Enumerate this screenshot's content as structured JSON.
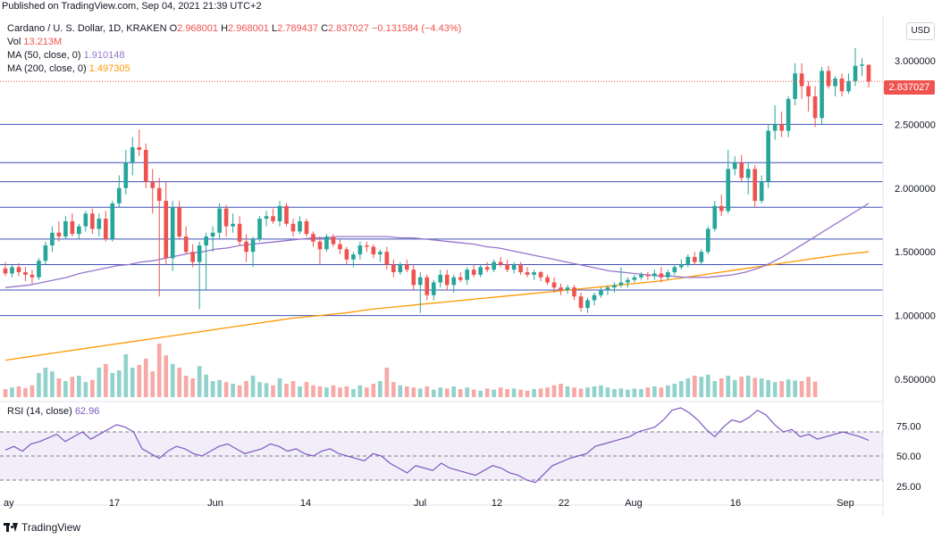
{
  "header": {
    "published": "Published on TradingView.com, Sep 04, 2021 21:39 UTC+2"
  },
  "legend": {
    "symbol": "Cardano / U. S. Dollar, 1D, KRAKEN",
    "o_label": "O",
    "o_value": "2.968001",
    "h_label": "H",
    "h_value": "2.968001",
    "l_label": "L",
    "l_value": "2.789437",
    "c_label": "C",
    "c_value": "2.837027",
    "change": "−0.131584 (−4.43%)",
    "vol_label": "Vol",
    "vol_value": "13.213M",
    "ma50_label": "MA (50, close, 0)",
    "ma50_value": "1.910148",
    "ma200_label": "MA (200, close, 0)",
    "ma200_value": "1.497305"
  },
  "rsi": {
    "label": "RSI (14, close)",
    "value": "62.96"
  },
  "currency_button": "USD",
  "last_price_tag": "2.837027",
  "colors": {
    "up": "#26a69a",
    "down": "#ef5350",
    "ma50": "#9575cd",
    "ma200": "#ff9800",
    "hline": "#3f51b5",
    "rsi_band": "#7e57c2"
  },
  "price_axis": [
    "3.000000",
    "2.500000",
    "2.000000",
    "1.500000",
    "1.000000",
    "0.500000"
  ],
  "rsi_axis": [
    "75.00",
    "50.00",
    "25.00"
  ],
  "time_axis": [
    "ay",
    "17",
    "Jun",
    "14",
    "Jul",
    "12",
    "22",
    "Aug",
    "16",
    "Sep"
  ],
  "footer": {
    "brand": "TradingView"
  },
  "chart_data": {
    "type": "candlestick",
    "horizontal_levels": [
      2.5,
      2.2,
      2.05,
      1.85,
      1.6,
      1.4,
      1.2,
      1.0
    ],
    "ylim": [
      0.45,
      3.15
    ],
    "candles": [
      {
        "o": 1.37,
        "h": 1.42,
        "l": 1.31,
        "c": 1.33
      },
      {
        "o": 1.33,
        "h": 1.4,
        "l": 1.3,
        "c": 1.38
      },
      {
        "o": 1.38,
        "h": 1.41,
        "l": 1.31,
        "c": 1.34
      },
      {
        "o": 1.34,
        "h": 1.38,
        "l": 1.27,
        "c": 1.32
      },
      {
        "o": 1.32,
        "h": 1.36,
        "l": 1.25,
        "c": 1.3
      },
      {
        "o": 1.3,
        "h": 1.45,
        "l": 1.28,
        "c": 1.43
      },
      {
        "o": 1.43,
        "h": 1.58,
        "l": 1.4,
        "c": 1.55
      },
      {
        "o": 1.55,
        "h": 1.7,
        "l": 1.5,
        "c": 1.65
      },
      {
        "o": 1.65,
        "h": 1.74,
        "l": 1.58,
        "c": 1.62
      },
      {
        "o": 1.62,
        "h": 1.78,
        "l": 1.6,
        "c": 1.74
      },
      {
        "o": 1.74,
        "h": 1.8,
        "l": 1.62,
        "c": 1.64
      },
      {
        "o": 1.64,
        "h": 1.72,
        "l": 1.6,
        "c": 1.7
      },
      {
        "o": 1.7,
        "h": 1.82,
        "l": 1.66,
        "c": 1.8
      },
      {
        "o": 1.8,
        "h": 1.84,
        "l": 1.64,
        "c": 1.68
      },
      {
        "o": 1.68,
        "h": 1.8,
        "l": 1.62,
        "c": 1.76
      },
      {
        "o": 1.76,
        "h": 1.82,
        "l": 1.58,
        "c": 1.6
      },
      {
        "o": 1.6,
        "h": 1.9,
        "l": 1.58,
        "c": 1.88
      },
      {
        "o": 1.88,
        "h": 2.1,
        "l": 1.85,
        "c": 2.0
      },
      {
        "o": 2.0,
        "h": 2.3,
        "l": 1.95,
        "c": 2.2
      },
      {
        "o": 2.2,
        "h": 2.4,
        "l": 2.1,
        "c": 2.32
      },
      {
        "o": 2.32,
        "h": 2.46,
        "l": 2.25,
        "c": 2.3
      },
      {
        "o": 2.3,
        "h": 2.35,
        "l": 2.0,
        "c": 2.05
      },
      {
        "o": 2.05,
        "h": 2.15,
        "l": 1.8,
        "c": 2.0
      },
      {
        "o": 2.0,
        "h": 2.08,
        "l": 1.15,
        "c": 1.9
      },
      {
        "o": 1.9,
        "h": 2.05,
        "l": 1.4,
        "c": 1.45
      },
      {
        "o": 1.45,
        "h": 1.9,
        "l": 1.35,
        "c": 1.85
      },
      {
        "o": 1.85,
        "h": 1.9,
        "l": 1.6,
        "c": 1.62
      },
      {
        "o": 1.62,
        "h": 1.7,
        "l": 1.48,
        "c": 1.5
      },
      {
        "o": 1.5,
        "h": 1.56,
        "l": 1.38,
        "c": 1.42
      },
      {
        "o": 1.42,
        "h": 1.58,
        "l": 1.05,
        "c": 1.55
      },
      {
        "o": 1.55,
        "h": 1.65,
        "l": 1.2,
        "c": 1.62
      },
      {
        "o": 1.62,
        "h": 1.7,
        "l": 1.5,
        "c": 1.65
      },
      {
        "o": 1.65,
        "h": 1.88,
        "l": 1.6,
        "c": 1.84
      },
      {
        "o": 1.84,
        "h": 1.87,
        "l": 1.62,
        "c": 1.7
      },
      {
        "o": 1.7,
        "h": 1.8,
        "l": 1.65,
        "c": 1.72
      },
      {
        "o": 1.72,
        "h": 1.78,
        "l": 1.55,
        "c": 1.58
      },
      {
        "o": 1.58,
        "h": 1.64,
        "l": 1.42,
        "c": 1.5
      },
      {
        "o": 1.5,
        "h": 1.62,
        "l": 1.38,
        "c": 1.6
      },
      {
        "o": 1.6,
        "h": 1.78,
        "l": 1.58,
        "c": 1.76
      },
      {
        "o": 1.76,
        "h": 1.82,
        "l": 1.7,
        "c": 1.78
      },
      {
        "o": 1.78,
        "h": 1.84,
        "l": 1.72,
        "c": 1.74
      },
      {
        "o": 1.74,
        "h": 1.9,
        "l": 1.7,
        "c": 1.86
      },
      {
        "o": 1.86,
        "h": 1.88,
        "l": 1.7,
        "c": 1.72
      },
      {
        "o": 1.72,
        "h": 1.76,
        "l": 1.62,
        "c": 1.66
      },
      {
        "o": 1.66,
        "h": 1.78,
        "l": 1.64,
        "c": 1.74
      },
      {
        "o": 1.74,
        "h": 1.76,
        "l": 1.62,
        "c": 1.64
      },
      {
        "o": 1.64,
        "h": 1.66,
        "l": 1.54,
        "c": 1.58
      },
      {
        "o": 1.58,
        "h": 1.62,
        "l": 1.4,
        "c": 1.52
      },
      {
        "o": 1.52,
        "h": 1.64,
        "l": 1.5,
        "c": 1.62
      },
      {
        "o": 1.62,
        "h": 1.64,
        "l": 1.54,
        "c": 1.56
      },
      {
        "o": 1.56,
        "h": 1.6,
        "l": 1.48,
        "c": 1.52
      },
      {
        "o": 1.52,
        "h": 1.54,
        "l": 1.4,
        "c": 1.44
      },
      {
        "o": 1.44,
        "h": 1.5,
        "l": 1.38,
        "c": 1.48
      },
      {
        "o": 1.48,
        "h": 1.58,
        "l": 1.44,
        "c": 1.55
      },
      {
        "o": 1.55,
        "h": 1.58,
        "l": 1.5,
        "c": 1.54
      },
      {
        "o": 1.54,
        "h": 1.56,
        "l": 1.45,
        "c": 1.48
      },
      {
        "o": 1.48,
        "h": 1.52,
        "l": 1.42,
        "c": 1.5
      },
      {
        "o": 1.5,
        "h": 1.54,
        "l": 1.36,
        "c": 1.4
      },
      {
        "o": 1.4,
        "h": 1.44,
        "l": 1.3,
        "c": 1.34
      },
      {
        "o": 1.34,
        "h": 1.42,
        "l": 1.32,
        "c": 1.4
      },
      {
        "o": 1.4,
        "h": 1.44,
        "l": 1.34,
        "c": 1.36
      },
      {
        "o": 1.36,
        "h": 1.4,
        "l": 1.2,
        "c": 1.24
      },
      {
        "o": 1.24,
        "h": 1.34,
        "l": 1.02,
        "c": 1.3
      },
      {
        "o": 1.3,
        "h": 1.32,
        "l": 1.12,
        "c": 1.16
      },
      {
        "o": 1.16,
        "h": 1.28,
        "l": 1.12,
        "c": 1.26
      },
      {
        "o": 1.26,
        "h": 1.36,
        "l": 1.22,
        "c": 1.32
      },
      {
        "o": 1.32,
        "h": 1.36,
        "l": 1.2,
        "c": 1.24
      },
      {
        "o": 1.24,
        "h": 1.32,
        "l": 1.18,
        "c": 1.3
      },
      {
        "o": 1.3,
        "h": 1.34,
        "l": 1.26,
        "c": 1.28
      },
      {
        "o": 1.28,
        "h": 1.38,
        "l": 1.24,
        "c": 1.36
      },
      {
        "o": 1.36,
        "h": 1.4,
        "l": 1.3,
        "c": 1.32
      },
      {
        "o": 1.32,
        "h": 1.4,
        "l": 1.3,
        "c": 1.38
      },
      {
        "o": 1.38,
        "h": 1.42,
        "l": 1.34,
        "c": 1.36
      },
      {
        "o": 1.36,
        "h": 1.44,
        "l": 1.34,
        "c": 1.42
      },
      {
        "o": 1.42,
        "h": 1.46,
        "l": 1.38,
        "c": 1.4
      },
      {
        "o": 1.4,
        "h": 1.44,
        "l": 1.34,
        "c": 1.36
      },
      {
        "o": 1.36,
        "h": 1.42,
        "l": 1.33,
        "c": 1.4
      },
      {
        "o": 1.4,
        "h": 1.42,
        "l": 1.32,
        "c": 1.34
      },
      {
        "o": 1.34,
        "h": 1.38,
        "l": 1.3,
        "c": 1.32
      },
      {
        "o": 1.32,
        "h": 1.36,
        "l": 1.28,
        "c": 1.34
      },
      {
        "o": 1.34,
        "h": 1.35,
        "l": 1.27,
        "c": 1.3
      },
      {
        "o": 1.3,
        "h": 1.32,
        "l": 1.24,
        "c": 1.26
      },
      {
        "o": 1.26,
        "h": 1.3,
        "l": 1.18,
        "c": 1.22
      },
      {
        "o": 1.22,
        "h": 1.25,
        "l": 1.16,
        "c": 1.2
      },
      {
        "o": 1.2,
        "h": 1.24,
        "l": 1.17,
        "c": 1.22
      },
      {
        "o": 1.22,
        "h": 1.24,
        "l": 1.12,
        "c": 1.15
      },
      {
        "o": 1.15,
        "h": 1.18,
        "l": 1.03,
        "c": 1.06
      },
      {
        "o": 1.06,
        "h": 1.14,
        "l": 1.02,
        "c": 1.12
      },
      {
        "o": 1.12,
        "h": 1.18,
        "l": 1.08,
        "c": 1.16
      },
      {
        "o": 1.16,
        "h": 1.22,
        "l": 1.14,
        "c": 1.2
      },
      {
        "o": 1.2,
        "h": 1.24,
        "l": 1.16,
        "c": 1.22
      },
      {
        "o": 1.22,
        "h": 1.26,
        "l": 1.18,
        "c": 1.24
      },
      {
        "o": 1.24,
        "h": 1.38,
        "l": 1.22,
        "c": 1.26
      },
      {
        "o": 1.26,
        "h": 1.3,
        "l": 1.22,
        "c": 1.28
      },
      {
        "o": 1.28,
        "h": 1.32,
        "l": 1.26,
        "c": 1.3
      },
      {
        "o": 1.3,
        "h": 1.34,
        "l": 1.28,
        "c": 1.32
      },
      {
        "o": 1.32,
        "h": 1.34,
        "l": 1.28,
        "c": 1.31
      },
      {
        "o": 1.31,
        "h": 1.36,
        "l": 1.28,
        "c": 1.33
      },
      {
        "o": 1.33,
        "h": 1.38,
        "l": 1.26,
        "c": 1.3
      },
      {
        "o": 1.3,
        "h": 1.36,
        "l": 1.28,
        "c": 1.34
      },
      {
        "o": 1.34,
        "h": 1.4,
        "l": 1.32,
        "c": 1.38
      },
      {
        "o": 1.38,
        "h": 1.44,
        "l": 1.36,
        "c": 1.4
      },
      {
        "o": 1.4,
        "h": 1.48,
        "l": 1.38,
        "c": 1.46
      },
      {
        "o": 1.46,
        "h": 1.5,
        "l": 1.4,
        "c": 1.42
      },
      {
        "o": 1.42,
        "h": 1.52,
        "l": 1.4,
        "c": 1.5
      },
      {
        "o": 1.5,
        "h": 1.7,
        "l": 1.48,
        "c": 1.68
      },
      {
        "o": 1.68,
        "h": 1.9,
        "l": 1.66,
        "c": 1.86
      },
      {
        "o": 1.86,
        "h": 1.95,
        "l": 1.78,
        "c": 1.82
      },
      {
        "o": 1.82,
        "h": 2.3,
        "l": 1.8,
        "c": 2.15
      },
      {
        "o": 2.15,
        "h": 2.25,
        "l": 2.1,
        "c": 2.2
      },
      {
        "o": 2.2,
        "h": 2.26,
        "l": 2.05,
        "c": 2.08
      },
      {
        "o": 2.08,
        "h": 2.2,
        "l": 1.95,
        "c": 2.15
      },
      {
        "o": 2.15,
        "h": 2.18,
        "l": 1.85,
        "c": 1.9
      },
      {
        "o": 1.9,
        "h": 2.1,
        "l": 1.88,
        "c": 2.05
      },
      {
        "o": 2.05,
        "h": 2.5,
        "l": 2.0,
        "c": 2.45
      },
      {
        "o": 2.45,
        "h": 2.65,
        "l": 2.38,
        "c": 2.5
      },
      {
        "o": 2.5,
        "h": 2.6,
        "l": 2.4,
        "c": 2.45
      },
      {
        "o": 2.45,
        "h": 2.72,
        "l": 2.4,
        "c": 2.7
      },
      {
        "o": 2.7,
        "h": 2.98,
        "l": 2.65,
        "c": 2.9
      },
      {
        "o": 2.9,
        "h": 2.98,
        "l": 2.7,
        "c": 2.8
      },
      {
        "o": 2.8,
        "h": 2.84,
        "l": 2.6,
        "c": 2.72
      },
      {
        "o": 2.72,
        "h": 2.8,
        "l": 2.48,
        "c": 2.55
      },
      {
        "o": 2.55,
        "h": 2.95,
        "l": 2.5,
        "c": 2.92
      },
      {
        "o": 2.92,
        "h": 2.96,
        "l": 2.78,
        "c": 2.8
      },
      {
        "o": 2.8,
        "h": 2.88,
        "l": 2.72,
        "c": 2.86
      },
      {
        "o": 2.86,
        "h": 2.9,
        "l": 2.72,
        "c": 2.76
      },
      {
        "o": 2.76,
        "h": 2.9,
        "l": 2.74,
        "c": 2.84
      },
      {
        "o": 2.84,
        "h": 3.1,
        "l": 2.8,
        "c": 2.96
      },
      {
        "o": 2.96,
        "h": 3.02,
        "l": 2.88,
        "c": 2.97
      },
      {
        "o": 2.968,
        "h": 2.968,
        "l": 2.789,
        "c": 2.837
      }
    ],
    "volume": [
      0.15,
      0.18,
      0.2,
      0.17,
      0.22,
      0.45,
      0.55,
      0.48,
      0.35,
      0.3,
      0.38,
      0.4,
      0.28,
      0.32,
      0.55,
      0.62,
      0.45,
      0.5,
      0.8,
      0.55,
      0.6,
      0.72,
      0.48,
      1.0,
      0.78,
      0.62,
      0.55,
      0.4,
      0.35,
      0.58,
      0.42,
      0.3,
      0.32,
      0.28,
      0.25,
      0.22,
      0.3,
      0.4,
      0.28,
      0.26,
      0.22,
      0.35,
      0.25,
      0.3,
      0.2,
      0.28,
      0.22,
      0.2,
      0.18,
      0.22,
      0.18,
      0.2,
      0.15,
      0.22,
      0.18,
      0.25,
      0.3,
      0.55,
      0.28,
      0.22,
      0.2,
      0.18,
      0.16,
      0.2,
      0.14,
      0.18,
      0.16,
      0.2,
      0.15,
      0.18,
      0.14,
      0.12,
      0.16,
      0.14,
      0.18,
      0.15,
      0.16,
      0.14,
      0.12,
      0.15,
      0.16,
      0.18,
      0.22,
      0.25,
      0.2,
      0.18,
      0.16,
      0.18,
      0.2,
      0.22,
      0.18,
      0.15,
      0.16,
      0.14,
      0.16,
      0.15,
      0.18,
      0.2,
      0.18,
      0.22,
      0.25,
      0.3,
      0.35,
      0.4,
      0.38,
      0.42,
      0.3,
      0.35,
      0.4,
      0.32,
      0.38,
      0.4,
      0.36,
      0.35,
      0.32,
      0.28,
      0.3,
      0.33,
      0.31,
      0.3,
      0.38,
      0.29
    ],
    "ma50": [
      1.22,
      1.23,
      1.24,
      1.26,
      1.28,
      1.3,
      1.33,
      1.35,
      1.37,
      1.39,
      1.4,
      1.42,
      1.43,
      1.45,
      1.47,
      1.49,
      1.5,
      1.52,
      1.53,
      1.55,
      1.56,
      1.57,
      1.58,
      1.59,
      1.6,
      1.61,
      1.61,
      1.62,
      1.62,
      1.62,
      1.62,
      1.62,
      1.61,
      1.61,
      1.6,
      1.59,
      1.58,
      1.57,
      1.56,
      1.54,
      1.53,
      1.51,
      1.49,
      1.47,
      1.45,
      1.43,
      1.41,
      1.39,
      1.37,
      1.35,
      1.34,
      1.33,
      1.32,
      1.31,
      1.31,
      1.3,
      1.3,
      1.3,
      1.31,
      1.32,
      1.34,
      1.37,
      1.41,
      1.46,
      1.52,
      1.58,
      1.64,
      1.7,
      1.76,
      1.82,
      1.88
    ],
    "ma200": [
      0.65,
      0.68,
      0.71,
      0.74,
      0.77,
      0.8,
      0.83,
      0.86,
      0.89,
      0.92,
      0.95,
      0.98,
      1.0,
      1.02,
      1.05,
      1.07,
      1.09,
      1.11,
      1.13,
      1.15,
      1.17,
      1.19,
      1.21,
      1.23,
      1.25,
      1.27,
      1.3,
      1.33,
      1.36,
      1.39,
      1.42,
      1.45,
      1.48,
      1.5
    ],
    "rsi": [
      55,
      58,
      54,
      60,
      62,
      65,
      68,
      62,
      66,
      70,
      64,
      68,
      72,
      76,
      74,
      70,
      56,
      52,
      48,
      54,
      58,
      56,
      52,
      50,
      54,
      58,
      60,
      56,
      52,
      54,
      56,
      60,
      58,
      54,
      56,
      52,
      50,
      54,
      56,
      52,
      50,
      48,
      46,
      52,
      50,
      44,
      40,
      36,
      42,
      40,
      38,
      44,
      40,
      38,
      36,
      34,
      38,
      42,
      40,
      36,
      34,
      30,
      28,
      35,
      42,
      45,
      48,
      50,
      52,
      58,
      60,
      62,
      64,
      66,
      70,
      72,
      74,
      80,
      88,
      90,
      86,
      80,
      72,
      66,
      74,
      80,
      78,
      82,
      88,
      84,
      76,
      70,
      72,
      66,
      68,
      64,
      66,
      68,
      70,
      68,
      66,
      62.96
    ]
  }
}
